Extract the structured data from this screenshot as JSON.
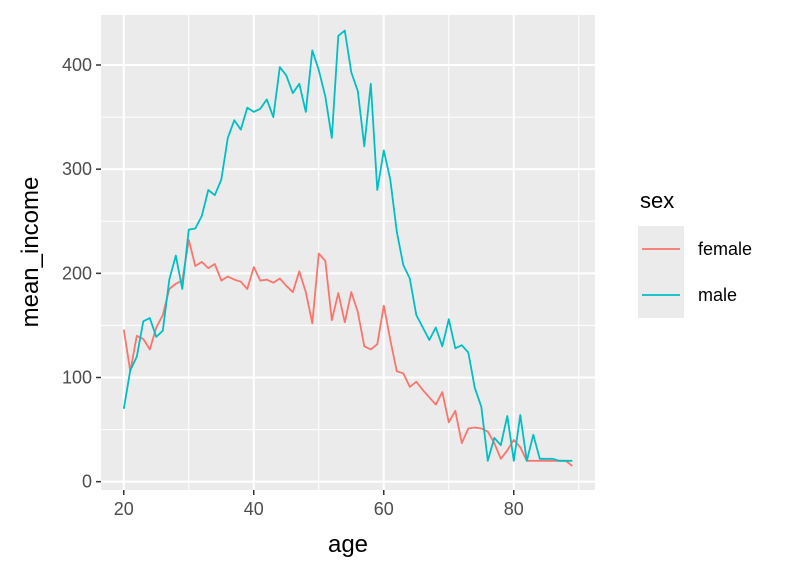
{
  "chart_data": {
    "type": "line",
    "xlabel": "age",
    "ylabel": "mean_income",
    "xlim": [
      16.5,
      92.5
    ],
    "ylim": [
      -8,
      448
    ],
    "x_ticks": [
      20,
      40,
      60,
      80
    ],
    "y_ticks": [
      0,
      100,
      200,
      300,
      400
    ],
    "x_minor": [
      30,
      50,
      70,
      90
    ],
    "y_minor": [
      50,
      150,
      250,
      350
    ],
    "grid": true,
    "panel_background": "#ebebeb",
    "legend": {
      "title": "sex",
      "placement": "right",
      "items": [
        {
          "label": "female",
          "color": "#F8766D"
        },
        {
          "label": "male",
          "color": "#00BFC4"
        }
      ]
    },
    "series": [
      {
        "name": "female",
        "color": "#F8766D",
        "x": [
          20,
          21,
          22,
          23,
          24,
          25,
          26,
          27,
          28,
          29,
          30,
          31,
          32,
          33,
          34,
          35,
          36,
          37,
          38,
          39,
          40,
          41,
          42,
          43,
          44,
          45,
          46,
          47,
          48,
          49,
          50,
          51,
          52,
          53,
          54,
          55,
          56,
          57,
          58,
          59,
          60,
          61,
          62,
          63,
          64,
          65,
          66,
          67,
          68,
          69,
          70,
          71,
          72,
          73,
          74,
          75,
          76,
          77,
          78,
          79,
          80,
          81,
          82,
          83,
          84,
          85,
          86,
          87,
          88,
          89
        ],
        "y": [
          146,
          106,
          140,
          137,
          127,
          148,
          160,
          185,
          190,
          193,
          232,
          207,
          211,
          205,
          209,
          193,
          197,
          194,
          192,
          185,
          206,
          193,
          194,
          191,
          195,
          188,
          182,
          202,
          182,
          152,
          219,
          212,
          155,
          181,
          153,
          182,
          163,
          130,
          127,
          132,
          169,
          136,
          106,
          104,
          91,
          96,
          88,
          81,
          74,
          86,
          57,
          68,
          37,
          51,
          52,
          51,
          48,
          37,
          22,
          30,
          40,
          33,
          20,
          20,
          20,
          20,
          20,
          20,
          20,
          15
        ]
      },
      {
        "name": "male",
        "color": "#00BFC4",
        "x": [
          20,
          21,
          22,
          23,
          24,
          25,
          26,
          27,
          28,
          29,
          30,
          31,
          32,
          33,
          34,
          35,
          36,
          37,
          38,
          39,
          40,
          41,
          42,
          43,
          44,
          45,
          46,
          47,
          48,
          49,
          50,
          51,
          52,
          53,
          54,
          55,
          56,
          57,
          58,
          59,
          60,
          61,
          62,
          63,
          64,
          65,
          66,
          67,
          68,
          69,
          70,
          71,
          72,
          73,
          74,
          75,
          76,
          77,
          78,
          79,
          80,
          81,
          82,
          83,
          84,
          85,
          86,
          87,
          88,
          89
        ],
        "y": [
          70,
          107,
          120,
          154,
          157,
          139,
          145,
          194,
          217,
          185,
          242,
          243,
          255,
          280,
          275,
          290,
          330,
          347,
          338,
          359,
          355,
          358,
          367,
          350,
          398,
          390,
          373,
          382,
          355,
          414,
          395,
          370,
          330,
          428,
          433,
          393,
          375,
          322,
          382,
          280,
          318,
          290,
          240,
          208,
          195,
          160,
          148,
          136,
          148,
          130,
          156,
          128,
          131,
          124,
          90,
          72,
          20,
          42,
          35,
          63,
          20,
          64,
          20,
          45,
          22,
          22,
          22,
          20,
          20,
          20
        ]
      }
    ]
  }
}
